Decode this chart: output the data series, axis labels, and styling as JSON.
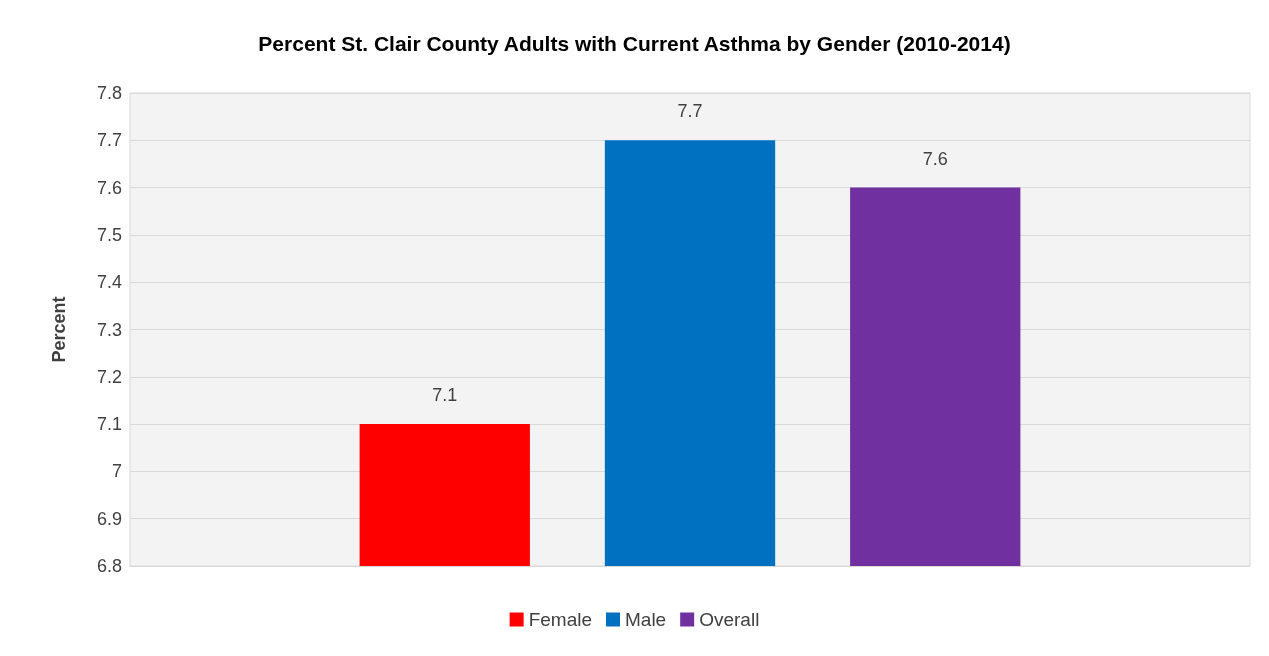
{
  "chart_data": {
    "type": "bar",
    "title": "Percent St. Clair County Adults with Current Asthma by Gender (2010-2014)",
    "ylabel": "Percent",
    "categories": [
      null
    ],
    "series": [
      {
        "name": "Female",
        "color": "#ff0000",
        "values": [
          7.1
        ]
      },
      {
        "name": "Male",
        "color": "#0070c0",
        "values": [
          7.7
        ]
      },
      {
        "name": "Overall",
        "color": "#7030a0",
        "values": [
          7.6
        ]
      }
    ],
    "ylim": [
      6.8,
      7.8
    ],
    "yticks": [
      6.8,
      6.9,
      7,
      7.1,
      7.2,
      7.3,
      7.4,
      7.5,
      7.6,
      7.7,
      7.8
    ],
    "grid": true,
    "legend": "bottom",
    "data_labels": true
  }
}
